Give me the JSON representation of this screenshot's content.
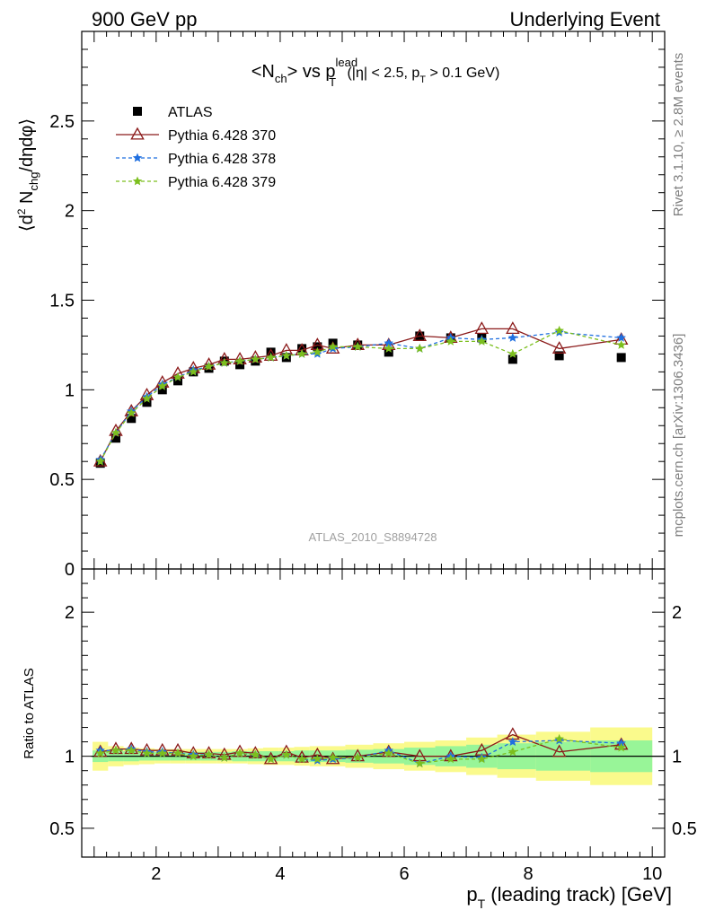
{
  "header": {
    "left": "900 GeV pp",
    "right": "Underlying Event"
  },
  "side_labels": {
    "rivet": "Rivet 3.1.10, ≥ 2.8M events",
    "mcplots": "mcplots.cern.ch [arXiv:1306.3436]"
  },
  "title": {
    "p1": "<N",
    "sub1": "ch",
    "p2": "> vs p",
    "sup": "lead",
    "sub2": "T",
    "p3": " (|η| < 2.5, p",
    "sub3": "T",
    "p4": " > 0.1 GeV)"
  },
  "ylabel_top": {
    "p1": "⟨d",
    "sup": "2",
    "p2": " N",
    "sub": "chg",
    "p3": "/dηdφ⟩"
  },
  "ylabel_bottom": "Ratio to ATLAS",
  "xlabel": {
    "p1": "p",
    "sub": "T",
    "p2": " (leading track) [GeV]"
  },
  "watermark": "ATLAS_2010_S8894728",
  "colors": {
    "atlas": "#000000",
    "p370": "#8b1a1a",
    "p378": "#1f6fe0",
    "p379": "#7cbf1e",
    "band_inner": "#98f598",
    "band_outer": "#fafa8c"
  },
  "legend": [
    {
      "key": "atlas",
      "label": "ATLAS",
      "marker": "square"
    },
    {
      "key": "p370",
      "label": "Pythia 6.428 370",
      "marker": "triangle"
    },
    {
      "key": "p378",
      "label": "Pythia 6.428 378",
      "marker": "star"
    },
    {
      "key": "p379",
      "label": "Pythia 6.428 379",
      "marker": "star"
    }
  ],
  "chart_data": {
    "type": "scatter",
    "x": [
      1.1,
      1.35,
      1.6,
      1.85,
      2.1,
      2.35,
      2.6,
      2.85,
      3.1,
      3.35,
      3.6,
      3.85,
      4.1,
      4.35,
      4.6,
      4.85,
      5.25,
      5.75,
      6.25,
      6.75,
      7.25,
      7.75,
      8.5,
      9.5
    ],
    "xlim": [
      0.8,
      10.2
    ],
    "top": {
      "ylim": [
        0,
        3.0
      ],
      "yticks": [
        0.5,
        1,
        1.5,
        2,
        2.5
      ],
      "series": [
        {
          "key": "atlas",
          "values": [
            0.59,
            0.73,
            0.84,
            0.93,
            1.0,
            1.05,
            1.1,
            1.12,
            1.16,
            1.14,
            1.16,
            1.21,
            1.18,
            1.23,
            1.24,
            1.26,
            1.25,
            1.21,
            1.3,
            1.29,
            1.29,
            1.17,
            1.19,
            1.18
          ]
        },
        {
          "key": "p370",
          "values": [
            0.6,
            0.77,
            0.88,
            0.97,
            1.04,
            1.09,
            1.12,
            1.14,
            1.17,
            1.17,
            1.18,
            1.19,
            1.22,
            1.22,
            1.25,
            1.23,
            1.25,
            1.25,
            1.3,
            1.29,
            1.34,
            1.34,
            1.23,
            1.28
          ]
        },
        {
          "key": "p378",
          "values": [
            0.61,
            0.76,
            0.88,
            0.96,
            1.03,
            1.07,
            1.11,
            1.13,
            1.15,
            1.16,
            1.17,
            1.18,
            1.19,
            1.2,
            1.2,
            1.23,
            1.24,
            1.26,
            1.23,
            1.29,
            1.28,
            1.29,
            1.32,
            1.29
          ]
        },
        {
          "key": "p379",
          "values": [
            0.6,
            0.76,
            0.87,
            0.95,
            1.02,
            1.07,
            1.1,
            1.13,
            1.15,
            1.16,
            1.17,
            1.18,
            1.19,
            1.2,
            1.21,
            1.24,
            1.24,
            1.23,
            1.23,
            1.27,
            1.27,
            1.2,
            1.33,
            1.25
          ]
        }
      ]
    },
    "bottom": {
      "ylim": [
        0.3,
        2.3
      ],
      "yticks": [
        0.5,
        1,
        2
      ],
      "reference": 1,
      "band_inner": [
        0.04,
        0.035,
        0.035,
        0.03,
        0.03,
        0.03,
        0.03,
        0.03,
        0.03,
        0.035,
        0.035,
        0.035,
        0.035,
        0.04,
        0.04,
        0.04,
        0.045,
        0.05,
        0.06,
        0.07,
        0.08,
        0.09,
        0.1,
        0.11
      ],
      "band_outer": [
        0.1,
        0.07,
        0.06,
        0.055,
        0.05,
        0.05,
        0.05,
        0.05,
        0.05,
        0.05,
        0.055,
        0.06,
        0.06,
        0.065,
        0.07,
        0.07,
        0.08,
        0.09,
        0.1,
        0.11,
        0.13,
        0.15,
        0.17,
        0.2
      ],
      "series": [
        {
          "key": "p370",
          "values": [
            1.03,
            1.05,
            1.05,
            1.04,
            1.04,
            1.04,
            1.02,
            1.02,
            1.01,
            1.03,
            1.02,
            0.98,
            1.03,
            0.99,
            1.01,
            0.98,
            1.0,
            1.03,
            1.0,
            1.0,
            1.04,
            1.15,
            1.03,
            1.08
          ]
        },
        {
          "key": "p378",
          "values": [
            1.04,
            1.04,
            1.05,
            1.03,
            1.03,
            1.02,
            1.01,
            1.01,
            0.99,
            1.02,
            1.01,
            0.98,
            1.01,
            0.98,
            0.97,
            0.98,
            0.99,
            1.04,
            0.95,
            1.0,
            0.99,
            1.1,
            1.11,
            1.09
          ]
        },
        {
          "key": "p379",
          "values": [
            1.02,
            1.04,
            1.04,
            1.02,
            1.02,
            1.02,
            1.0,
            1.01,
            0.99,
            1.02,
            1.01,
            0.98,
            1.01,
            0.98,
            0.98,
            0.99,
            0.99,
            1.02,
            0.95,
            0.98,
            0.98,
            1.03,
            1.12,
            1.06
          ]
        }
      ]
    }
  }
}
